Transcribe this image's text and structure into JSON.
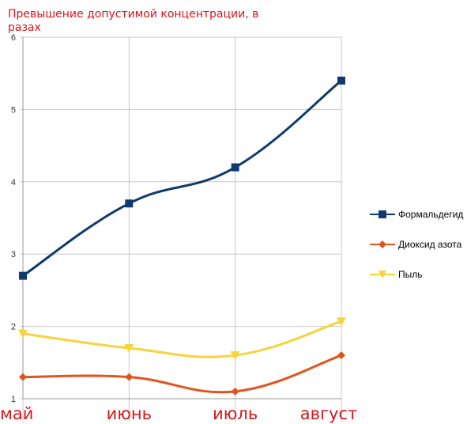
{
  "chart_data": {
    "type": "line",
    "title": "Превышение допустимой концентрации, в разах",
    "categories": [
      "май",
      "июнь",
      "июль",
      "август"
    ],
    "ylim": [
      1,
      6
    ],
    "yticks": [
      "1",
      "2",
      "3",
      "4",
      "5",
      "6"
    ],
    "grid": true,
    "legend_position": "right",
    "series": [
      {
        "name": "Формальдегид",
        "values": [
          2.7,
          3.7,
          4.2,
          5.4
        ],
        "color": "#0f3a6e",
        "marker": "square"
      },
      {
        "name": "Диоксид азота",
        "values": [
          1.3,
          1.3,
          1.1,
          1.6
        ],
        "color": "#e2541d",
        "marker": "diamond"
      },
      {
        "name": "Пыль",
        "values": [
          1.9,
          1.7,
          1.6,
          2.07
        ],
        "color": "#f6d43b",
        "marker": "triangle-down"
      }
    ],
    "colors": {
      "title": "#d9151b",
      "category_labels": "#d9151b",
      "grid": "#c8c8c8"
    }
  }
}
